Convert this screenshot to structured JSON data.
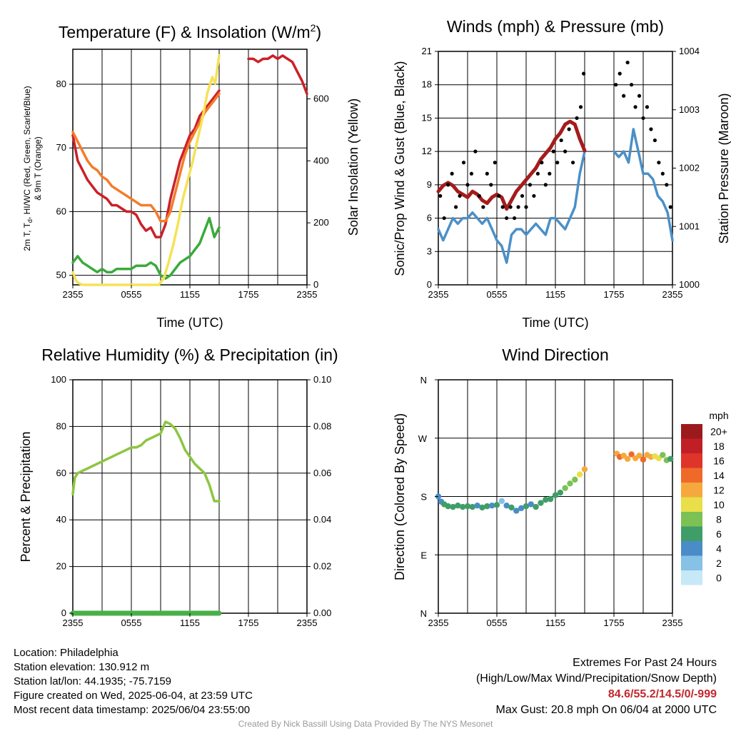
{
  "panels": {
    "temp": {
      "title": "Temperature (F) & Insolation (W/m",
      "title_sup": "2",
      "title_end": ")",
      "ylabel_left_1": "2m T, T",
      "ylabel_left_sub": "d",
      "ylabel_left_2": ", HI/WC (Red, Green, Scarlet/Blue)",
      "ylabel_left_3": "& 9m T (Orange)",
      "ylabel_right": "Solar Insolation (Yellow)",
      "xlabel": "Time (UTC)"
    },
    "wind": {
      "title": "Winds (mph) & Pressure (mb)",
      "ylabel_left": "Sonic/Prop Wind & Gust (Blue, Black)",
      "ylabel_right": "Station Pressure (Maroon)",
      "xlabel": "Time (UTC)"
    },
    "rh": {
      "title": "Relative Humidity (%) & Precipitation (in)",
      "ylabel_left": "Percent & Precipitation"
    },
    "dir": {
      "title": "Wind Direction",
      "ylabel_left": "Direction (Colored By Speed)",
      "colorbar_label": "mph"
    }
  },
  "footer": {
    "location": "Location: Philadelphia",
    "elevation": "Station elevation: 130.912 m",
    "latlon": "Station lat/lon: 44.1935; -75.7159",
    "created": "Figure created on Wed, 2025-06-04, at 23:59 UTC",
    "recent": "Most recent data timestamp: 2025/06/04 23:55:00",
    "extremes_title": "Extremes For Past 24 Hours",
    "extremes_sub": "(High/Low/Max Wind/Precipitation/Snow Depth)",
    "extremes_values": "84.6/55.2/14.5/0/-999",
    "max_gust": "Max Gust: 20.8 mph On 06/04 at 2000 UTC",
    "credit": "Created By Nick Bassill Using Data Provided By The NYS Mesonet"
  },
  "chart_data": [
    {
      "type": "line",
      "id": "temperature",
      "x_ticks": [
        "2355",
        "0555",
        "1155",
        "1755",
        "2355"
      ],
      "xlim_hours": [
        0,
        24
      ],
      "y_left_ticks": [
        50,
        60,
        70,
        80
      ],
      "ylim_left": [
        48.5,
        85.5
      ],
      "y_right_ticks": [
        0,
        200,
        400,
        600
      ],
      "ylim_right": [
        0,
        760
      ],
      "colors": {
        "t2m": "#cc2027",
        "t9m": "#f47c2a",
        "td": "#3aaa3a",
        "solar": "#f5e256"
      },
      "series": [
        {
          "key": "t2m",
          "x": [
            0,
            0.5,
            1,
            1.5,
            2,
            2.5,
            3,
            3.5,
            4,
            4.5,
            5,
            5.5,
            6,
            6.5,
            7,
            7.5,
            8,
            8.5,
            9,
            9.5,
            10,
            10.5,
            11,
            11.5,
            12,
            12.5,
            13,
            13.5,
            14,
            14.5,
            15
          ],
          "y": [
            72,
            68,
            66.5,
            65,
            64,
            63,
            62.5,
            62,
            61,
            61,
            60.5,
            60,
            60,
            59.5,
            58,
            57,
            57.5,
            56,
            56,
            58,
            62,
            65,
            68,
            70,
            72,
            73,
            75,
            76,
            77,
            78,
            79
          ]
        },
        {
          "key": "t2m",
          "x": [
            18,
            18.5,
            19,
            19.5,
            20,
            20.5,
            21,
            21.5,
            22,
            22.5,
            23,
            23.5,
            24
          ],
          "y": [
            84,
            84,
            83.5,
            84,
            84,
            84.5,
            84,
            84.5,
            84,
            83.5,
            82,
            80.5,
            78.5
          ]
        },
        {
          "key": "t9m",
          "x": [
            0,
            0.5,
            1,
            1.5,
            2,
            2.5,
            3,
            3.5,
            4,
            4.5,
            5,
            5.5,
            6,
            6.5,
            7,
            7.5,
            8,
            8.5,
            9,
            9.5,
            10,
            10.5,
            11,
            11.5,
            12,
            12.5,
            13,
            13.5,
            14,
            14.5,
            15
          ],
          "y": [
            72.5,
            71,
            69.5,
            68,
            67,
            66.5,
            65.5,
            65,
            64,
            63.5,
            63,
            62.5,
            62,
            61.5,
            61,
            61,
            61,
            60,
            58.5,
            58.5,
            60,
            63,
            66,
            69,
            71,
            72.5,
            74,
            75.5,
            76.5,
            77.5,
            78.5
          ]
        },
        {
          "key": "td",
          "x": [
            0,
            0.5,
            1,
            1.5,
            2,
            2.5,
            3,
            3.5,
            4,
            4.5,
            5,
            5.5,
            6,
            6.5,
            7,
            7.5,
            8,
            8.5,
            9,
            9.5,
            10,
            10.5,
            11,
            11.5,
            12,
            12.5,
            13,
            13.5,
            14,
            14.5,
            15
          ],
          "y": [
            52,
            53,
            52,
            51.5,
            51,
            50.5,
            51,
            50.5,
            50.5,
            51,
            51,
            51,
            51,
            51.5,
            51.5,
            51.5,
            52,
            51.5,
            50,
            49.5,
            50,
            51,
            52,
            52.5,
            53,
            54,
            55,
            57,
            59,
            56,
            57.5
          ]
        },
        {
          "key": "solar",
          "x": [
            0,
            0.3,
            0.6,
            1,
            2,
            3,
            4,
            5,
            6,
            7,
            8,
            8.8,
            9.3,
            9.8,
            10.3,
            10.8,
            11.3,
            11.8,
            12.3,
            12.8,
            13.3,
            13.8,
            14.3,
            14.6,
            15
          ],
          "y": [
            40,
            15,
            5,
            0,
            0,
            0,
            0,
            0,
            0,
            0,
            0,
            0,
            20,
            70,
            130,
            200,
            280,
            340,
            400,
            470,
            540,
            620,
            670,
            650,
            740
          ]
        }
      ]
    },
    {
      "type": "line",
      "id": "winds",
      "x_ticks": [
        "2355",
        "0555",
        "1155",
        "1755",
        "2355"
      ],
      "xlim_hours": [
        0,
        24
      ],
      "y_left_ticks": [
        0,
        3,
        6,
        9,
        12,
        15,
        18,
        21
      ],
      "ylim_left": [
        0,
        21
      ],
      "y_right_ticks": [
        1000,
        1001,
        1002,
        1003,
        1004
      ],
      "ylim_right": [
        1000,
        1004
      ],
      "colors": {
        "wind": "#4a90c8",
        "gust": "#000000",
        "pressure": "#a51c1c"
      },
      "series": [
        {
          "key": "wind",
          "x": [
            0,
            0.5,
            1,
            1.5,
            2,
            2.5,
            3,
            3.5,
            4,
            4.5,
            5,
            5.5,
            6,
            6.5,
            7,
            7.5,
            8,
            8.5,
            9,
            9.5,
            10,
            10.5,
            11,
            11.5,
            12,
            12.5,
            13,
            13.5,
            14,
            14.5,
            15
          ],
          "y": [
            5,
            4,
            5,
            6,
            5.5,
            6,
            6,
            6.5,
            6,
            5.5,
            6,
            5,
            4,
            3.5,
            2,
            4.5,
            5,
            5,
            4.5,
            5,
            5.5,
            5,
            4.5,
            6,
            6,
            5.5,
            5,
            6,
            7,
            10,
            12
          ]
        },
        {
          "key": "wind",
          "x": [
            18,
            18.5,
            19,
            19.5,
            20,
            20.5,
            21,
            21.5,
            22,
            22.5,
            23,
            23.5,
            24
          ],
          "y": [
            12,
            11.5,
            12,
            11,
            14,
            12,
            10,
            10,
            9.5,
            8,
            7.5,
            6.5,
            4
          ]
        },
        {
          "key": "pressure",
          "x": [
            0,
            0.5,
            1,
            1.5,
            2,
            2.5,
            3,
            3.5,
            4,
            4.5,
            5,
            5.5,
            6,
            6.5,
            7,
            7.5,
            8,
            8.5,
            9,
            9.5,
            10,
            10.5,
            11,
            11.5,
            12,
            12.5,
            13,
            13.5,
            14,
            14.5,
            15
          ],
          "y": [
            1001.6,
            1001.7,
            1001.75,
            1001.7,
            1001.6,
            1001.55,
            1001.5,
            1001.6,
            1001.55,
            1001.45,
            1001.4,
            1001.5,
            1001.55,
            1001.5,
            1001.3,
            1001.45,
            1001.6,
            1001.7,
            1001.8,
            1001.9,
            1002.0,
            1002.15,
            1002.25,
            1002.35,
            1002.5,
            1002.6,
            1002.75,
            1002.8,
            1002.75,
            1002.5,
            1002.3
          ]
        }
      ],
      "gust_points": {
        "x": [
          0.2,
          0.6,
          1.0,
          1.4,
          1.8,
          2.2,
          2.6,
          3.0,
          3.4,
          3.8,
          4.2,
          4.6,
          5.0,
          5.4,
          5.8,
          6.2,
          6.6,
          7.0,
          7.4,
          7.8,
          8.2,
          8.6,
          9.0,
          9.4,
          9.8,
          10.2,
          10.6,
          11.0,
          11.4,
          11.8,
          12.2,
          12.6,
          13.0,
          13.4,
          13.8,
          14.2,
          14.6,
          14.9,
          18.2,
          18.6,
          19.0,
          19.4,
          19.8,
          20.2,
          20.6,
          21.0,
          21.4,
          21.8,
          22.2,
          22.6,
          23.0,
          23.4,
          23.8
        ],
        "y": [
          8,
          6,
          9,
          10,
          7,
          8,
          11,
          9,
          10,
          12,
          8,
          7,
          10,
          9,
          11,
          8,
          7,
          6,
          7,
          6,
          7,
          8,
          7,
          9,
          8,
          10,
          11,
          9,
          10,
          12,
          11,
          13,
          12,
          14,
          11,
          15,
          16,
          19,
          18,
          19,
          17,
          20,
          18,
          16,
          17,
          15,
          16,
          14,
          13,
          11,
          10,
          9,
          7
        ]
      }
    },
    {
      "type": "line",
      "id": "humidity",
      "x_ticks": [
        "2355",
        "0555",
        "1155",
        "1755",
        "2355"
      ],
      "xlim_hours": [
        0,
        24
      ],
      "y_left_ticks": [
        0,
        20,
        40,
        60,
        80,
        100
      ],
      "ylim_left": [
        0,
        100
      ],
      "y_right_ticks": [
        "0.00",
        "0.02",
        "0.04",
        "0.06",
        "0.08",
        "0.10"
      ],
      "ylim_right": [
        0,
        0.1
      ],
      "colors": {
        "rh": "#8cc63f",
        "precip": "#49b048"
      },
      "series": [
        {
          "key": "rh",
          "x": [
            0,
            0.2,
            0.5,
            1,
            1.5,
            2,
            2.5,
            3,
            3.5,
            4,
            4.5,
            5,
            5.5,
            6,
            6.5,
            7,
            7.5,
            8,
            8.5,
            9,
            9.5,
            10,
            10.5,
            11,
            11.5,
            12,
            12.5,
            13,
            13.5,
            14,
            14.5,
            15
          ],
          "y": [
            51,
            58,
            60,
            61,
            62,
            63,
            64,
            65,
            66,
            67,
            68,
            69,
            70,
            71,
            71,
            72,
            74,
            75,
            76,
            77,
            82,
            81,
            79,
            75,
            70,
            67,
            64,
            62,
            60,
            55,
            48,
            48
          ]
        },
        {
          "key": "precip",
          "x": [
            0,
            15
          ],
          "y": [
            0,
            0
          ]
        }
      ]
    },
    {
      "type": "scatter",
      "id": "wind_direction",
      "x_ticks": [
        "2355",
        "0555",
        "1155",
        "1755",
        "2355"
      ],
      "xlim_hours": [
        0,
        24
      ],
      "y_ticks": [
        "N",
        "E",
        "S",
        "W",
        "N"
      ],
      "ylim_deg": [
        0,
        360
      ],
      "colorbar_levels": [
        "0",
        "2",
        "4",
        "6",
        "8",
        "10",
        "12",
        "14",
        "16",
        "18",
        "20+"
      ],
      "colorbar_colors": [
        "#c6e8f7",
        "#86c1e6",
        "#4a8cc7",
        "#3f9e67",
        "#7cc153",
        "#e8df4a",
        "#f5a93d",
        "#ef6a2a",
        "#de3429",
        "#c01f26",
        "#9c1a1c"
      ],
      "points": {
        "x": [
          0,
          0.3,
          0.6,
          1,
          1.5,
          2,
          2.5,
          3,
          3.5,
          4,
          4.5,
          5,
          5.5,
          6,
          6.5,
          7,
          7.5,
          8,
          8.5,
          9,
          9.5,
          10,
          10.5,
          11,
          11.5,
          12,
          12.5,
          13,
          13.5,
          14,
          14.5,
          15,
          18.3,
          18.6,
          19,
          19.4,
          19.8,
          20.2,
          20.6,
          21,
          21.4,
          21.8,
          22.2,
          22.6,
          23,
          23.4,
          23.8
        ],
        "y": [
          180,
          172,
          168,
          165,
          164,
          166,
          164,
          165,
          164,
          166,
          163,
          165,
          166,
          167,
          173,
          166,
          163,
          158,
          162,
          165,
          168,
          164,
          170,
          175,
          176,
          182,
          186,
          193,
          200,
          206,
          214,
          222,
          246,
          241,
          243,
          238,
          245,
          239,
          243,
          237,
          244,
          241,
          242,
          239,
          244,
          236,
          238
        ],
        "speed": [
          4,
          4,
          5,
          6,
          6,
          6,
          5,
          6,
          6,
          4,
          5,
          6,
          4,
          5,
          2,
          4,
          5,
          4,
          4,
          5,
          4,
          5,
          6,
          5,
          6,
          5,
          6,
          7,
          8,
          8,
          10,
          12,
          12,
          13,
          12,
          11,
          14,
          12,
          12,
          13,
          11,
          12,
          10,
          9,
          8,
          7,
          6
        ]
      }
    }
  ]
}
